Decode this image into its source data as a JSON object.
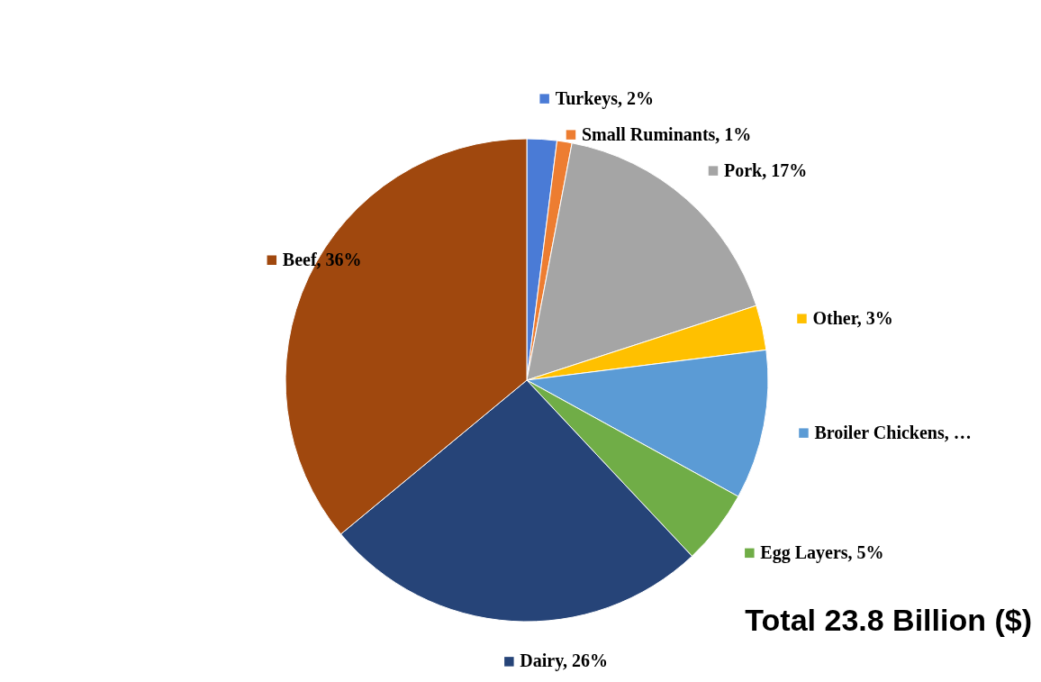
{
  "chart_data": {
    "type": "pie",
    "categories": [
      "Turkeys",
      "Small Ruminants",
      "Pork",
      "Other",
      "Broiler Chickens",
      "Egg Layers",
      "Dairy",
      "Beef"
    ],
    "values": [
      2,
      1,
      17,
      3,
      10,
      5,
      26,
      36
    ],
    "value_labels": [
      "2%",
      "1%",
      "17%",
      "3%",
      "…",
      "5%",
      "26%",
      "36%"
    ],
    "legend": "right",
    "colors": [
      "#4a7bd6",
      "#ed7d31",
      "#a5a5a5",
      "#ffc000",
      "#5b9bd5",
      "#70ad47",
      "#264478",
      "#a0480e"
    ],
    "annotations": [
      "Total 23.8 Billion ($)"
    ]
  }
}
